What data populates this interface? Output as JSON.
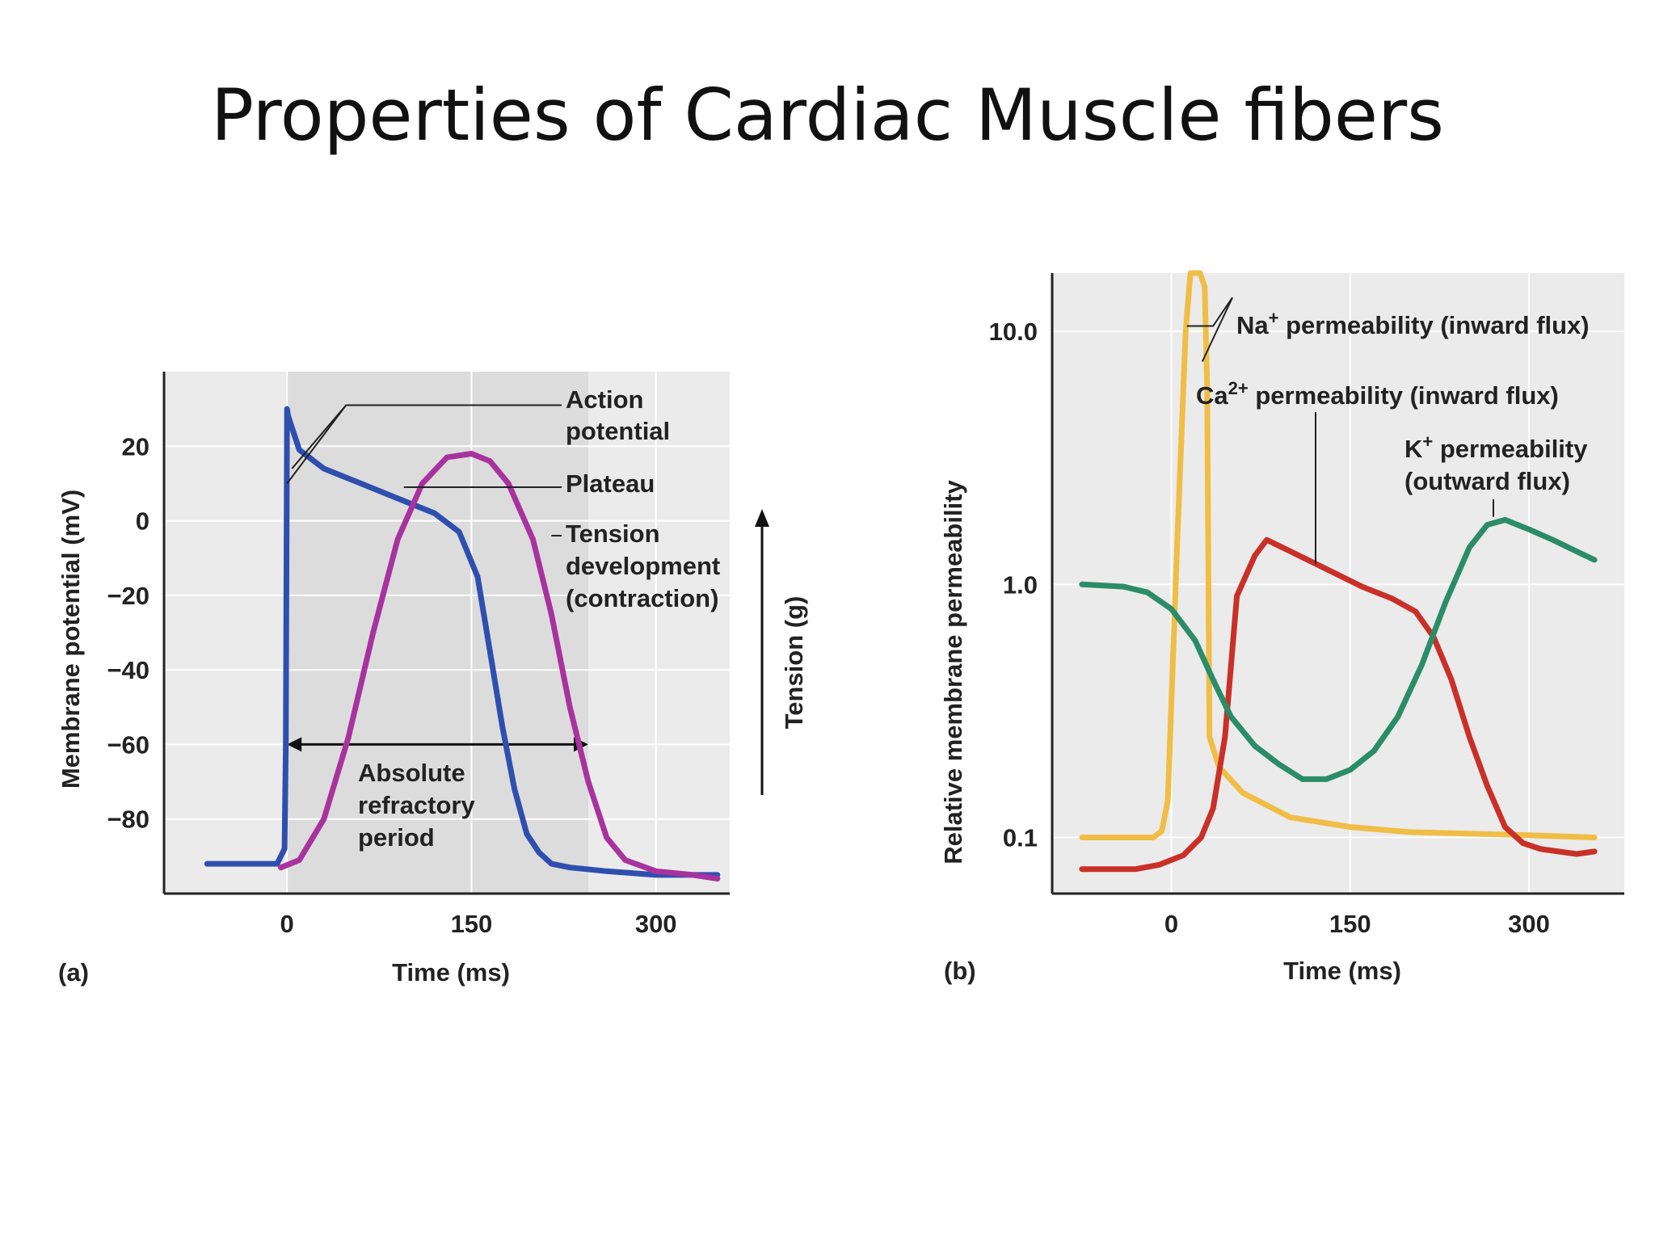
{
  "slide": {
    "title": "Properties of Cardiac Muscle fibers"
  },
  "chart_data": [
    {
      "panel_label": "(a)",
      "type": "line",
      "xlabel": "Time (ms)",
      "ylabel": "Membrane potential (mV)",
      "right_axis_label": "Tension (g)",
      "xlim": [
        -100,
        360
      ],
      "ylim": [
        -100,
        40
      ],
      "x_ticks": [
        "0",
        "150",
        "300"
      ],
      "y_ticks": [
        "20",
        "0",
        "−20",
        "−40",
        "−60",
        "−80"
      ],
      "series": [
        {
          "color": "#2f4fae",
          "x": [
            -65,
            -8,
            -2,
            -1,
            0,
            1,
            10,
            30,
            60,
            90,
            120,
            140,
            155,
            165,
            175,
            185,
            195,
            205,
            215,
            230,
            260,
            300,
            350
          ],
          "y": [
            -92,
            -92,
            -88,
            -60,
            30,
            28,
            19,
            14,
            10,
            6,
            2,
            -3,
            -15,
            -35,
            -55,
            -72,
            -84,
            -89,
            -92,
            -93,
            -94,
            -95,
            -95
          ]
        },
        {
          "color": "#a8329e",
          "x": [
            -5,
            10,
            30,
            50,
            70,
            90,
            110,
            130,
            150,
            165,
            180,
            200,
            215,
            230,
            245,
            260,
            275,
            300,
            330,
            350
          ],
          "y": [
            -93,
            -91,
            -80,
            -58,
            -30,
            -5,
            10,
            17,
            18,
            16,
            10,
            -5,
            -25,
            -50,
            -70,
            -85,
            -91,
            -94,
            -95,
            -96
          ]
        }
      ],
      "annotations": [
        {
          "lines": [
            "Action",
            "potential"
          ]
        },
        {
          "lines": [
            "Plateau"
          ]
        },
        {
          "lines": [
            "Tension",
            "development",
            "(contraction)"
          ]
        },
        {
          "lines": [
            "Absolute",
            "refractory",
            "period"
          ]
        }
      ],
      "refractory_period_ms": [
        0,
        245
      ],
      "colors": {
        "background": "#ebebeb",
        "shade": "#dcdcdc",
        "grid": "#ffffff"
      }
    },
    {
      "panel_label": "(b)",
      "type": "line",
      "scale_y": "log",
      "xlabel": "Time (ms)",
      "ylabel": "Relative membrane permeability",
      "xlim": [
        -100,
        380
      ],
      "ylim": [
        0.06,
        17
      ],
      "x_ticks": [
        "0",
        "150",
        "300"
      ],
      "y_ticks": [
        "10.0",
        "1.0",
        "0.1"
      ],
      "series": [
        {
          "name_parts": [
            "Na",
            "+",
            " permeability (inward flux)"
          ],
          "color": "#f0be46",
          "x": [
            -75,
            -15,
            -8,
            -3,
            5,
            12,
            16,
            20,
            24,
            28,
            30,
            32,
            40,
            60,
            100,
            150,
            200,
            300,
            355
          ],
          "y": [
            0.1,
            0.1,
            0.106,
            0.14,
            1.5,
            10,
            17,
            17,
            17,
            15,
            6,
            0.25,
            0.19,
            0.15,
            0.12,
            0.11,
            0.105,
            0.102,
            0.1
          ]
        },
        {
          "name_parts": [
            "Ca",
            "2+",
            " permeability (inward flux)"
          ],
          "color": "#c93028",
          "x": [
            -75,
            -30,
            -10,
            10,
            25,
            35,
            45,
            55,
            70,
            80,
            100,
            130,
            160,
            185,
            205,
            220,
            235,
            250,
            265,
            280,
            295,
            310,
            340,
            355
          ],
          "y": [
            0.075,
            0.075,
            0.078,
            0.085,
            0.1,
            0.13,
            0.25,
            0.9,
            1.3,
            1.5,
            1.35,
            1.15,
            0.98,
            0.88,
            0.78,
            0.62,
            0.42,
            0.25,
            0.16,
            0.11,
            0.095,
            0.09,
            0.086,
            0.088
          ]
        },
        {
          "name_parts": [
            "K",
            "+",
            " permeability",
            "(outward flux)"
          ],
          "color": "#2b8c68",
          "x": [
            -75,
            -40,
            -20,
            0,
            20,
            35,
            50,
            70,
            90,
            110,
            130,
            150,
            170,
            190,
            210,
            230,
            250,
            265,
            280,
            300,
            320,
            340,
            355
          ],
          "y": [
            1.0,
            0.98,
            0.93,
            0.8,
            0.6,
            0.42,
            0.3,
            0.23,
            0.195,
            0.17,
            0.17,
            0.185,
            0.22,
            0.3,
            0.48,
            0.85,
            1.4,
            1.72,
            1.8,
            1.65,
            1.5,
            1.35,
            1.25
          ]
        }
      ],
      "colors": {
        "background": "#ebebeb",
        "grid": "#ffffff"
      }
    }
  ]
}
